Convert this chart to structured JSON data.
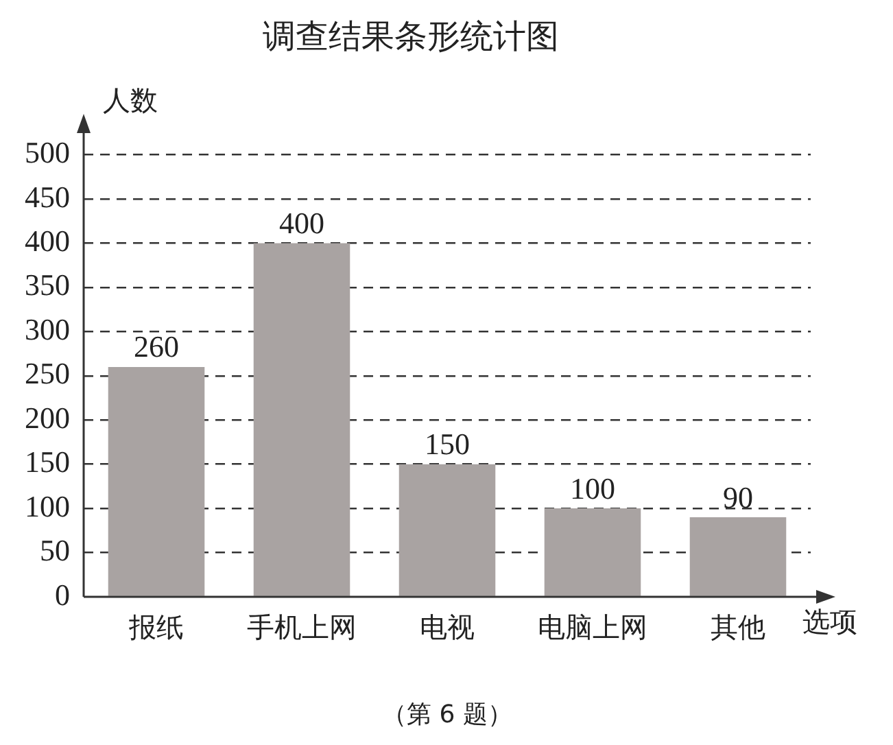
{
  "chart_data": {
    "type": "bar",
    "title": "调查结果条形统计图",
    "xlabel": "选项",
    "ylabel": "人数",
    "categories": [
      "报纸",
      "手机上网",
      "电视",
      "电脑上网",
      "其他"
    ],
    "values": [
      260,
      400,
      150,
      100,
      90
    ],
    "color": "#a9a3a2",
    "ylim": [
      0,
      500
    ],
    "yticks": [
      0,
      50,
      100,
      150,
      200,
      250,
      300,
      350,
      400,
      450,
      500
    ],
    "grid": "y",
    "data_labels": true,
    "annotations": [
      "（第 6 题）"
    ]
  }
}
